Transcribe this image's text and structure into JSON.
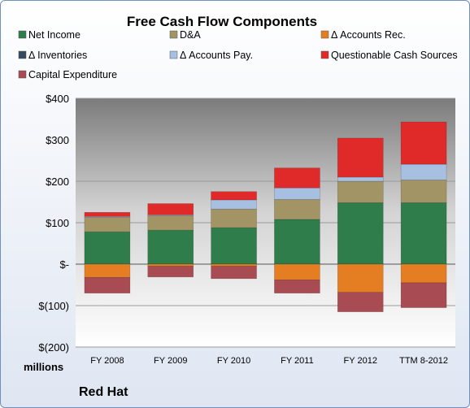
{
  "chart_data": {
    "type": "bar",
    "stacked": true,
    "title": "Free Cash Flow Components",
    "company": "Red Hat",
    "unit_label": "millions",
    "categories": [
      "FY 2008",
      "FY 2009",
      "FY 2010",
      "FY 2011",
      "FY 2012",
      "TTM 8-2012"
    ],
    "ylim": [
      -200,
      400
    ],
    "yticks": [
      {
        "value": 400,
        "label": "$400"
      },
      {
        "value": 300,
        "label": "$300"
      },
      {
        "value": 200,
        "label": "$200"
      },
      {
        "value": 100,
        "label": "$100"
      },
      {
        "value": 0,
        "label": "$-"
      },
      {
        "value": -100,
        "label": "$(100)"
      },
      {
        "value": -200,
        "label": "$(200)"
      }
    ],
    "grid": true,
    "legend_position": "top",
    "series": [
      {
        "name": "Net Income",
        "color": "#2e7d4a",
        "values": [
          78,
          82,
          88,
          108,
          148,
          148
        ]
      },
      {
        "name": "D&A",
        "color": "#a39465",
        "values": [
          35,
          35,
          45,
          48,
          52,
          55
        ]
      },
      {
        "name": "Δ Accounts Rec.",
        "color": "#e57e22",
        "values": [
          -32,
          -5,
          -5,
          -38,
          -68,
          -45
        ]
      },
      {
        "name": "Δ Inventories",
        "color": "#34495e",
        "values": [
          0,
          0,
          0,
          0,
          0,
          0
        ]
      },
      {
        "name": "Δ Accounts Pay.",
        "color": "#a7bfe0",
        "values": [
          2,
          2,
          22,
          28,
          10,
          38
        ]
      },
      {
        "name": "Questionable Cash Sources",
        "color": "#e02a2a",
        "values": [
          10,
          27,
          20,
          48,
          94,
          102
        ]
      },
      {
        "name": "Capital Expenditure",
        "color": "#a94b52",
        "values": [
          -38,
          -26,
          -30,
          -32,
          -47,
          -60
        ]
      }
    ]
  }
}
